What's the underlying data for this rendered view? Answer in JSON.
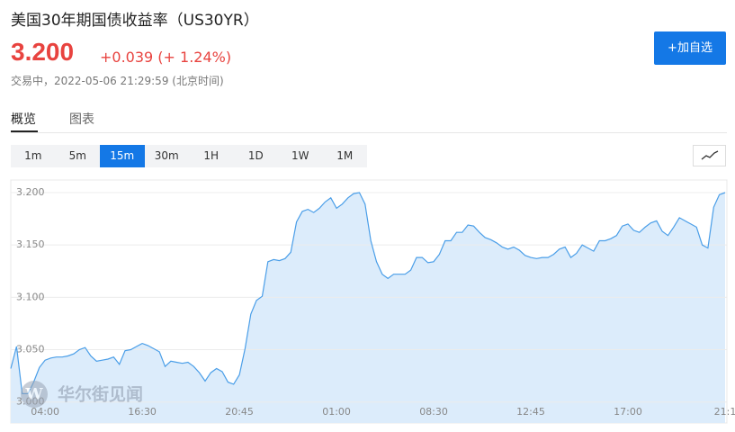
{
  "header": {
    "title": "美国30年期国债收益率（US30YR）",
    "price": "3.200",
    "change": "+0.039 (+ 1.24%)",
    "status": "交易中，2022-05-06 21:29:59 (北京时间)",
    "add_button": "+加自选"
  },
  "tabs": [
    "概览",
    "图表"
  ],
  "intervals": [
    "1m",
    "5m",
    "15m",
    "30m",
    "1H",
    "1D",
    "1W",
    "1M"
  ],
  "watermark": "华尔街见闻",
  "chart_data": {
    "type": "area",
    "x": [
      null,
      null,
      null,
      null,
      null,
      null,
      "04:00",
      null,
      null,
      null,
      null,
      null,
      null,
      null,
      null,
      null,
      null,
      null,
      null,
      null,
      null,
      null,
      null,
      "16:30",
      null,
      null,
      null,
      null,
      null,
      null,
      null,
      null,
      null,
      null,
      null,
      null,
      null,
      null,
      null,
      null,
      "20:45",
      null,
      null,
      null,
      null,
      null,
      null,
      null,
      null,
      null,
      null,
      null,
      null,
      null,
      null,
      null,
      null,
      "01:00",
      null,
      null,
      null,
      null,
      null,
      null,
      null,
      null,
      null,
      null,
      null,
      null,
      null,
      null,
      null,
      null,
      "08:30",
      null,
      null,
      null,
      null,
      null,
      null,
      null,
      null,
      null,
      null,
      null,
      null,
      null,
      null,
      null,
      null,
      "12:45",
      null,
      null,
      null,
      null,
      null,
      null,
      null,
      null,
      null,
      null,
      null,
      null,
      null,
      null,
      null,
      null,
      "17:00",
      null,
      null,
      null,
      null,
      null,
      null,
      null,
      null,
      null,
      null,
      null,
      null,
      null,
      null,
      null,
      null,
      "21:1"
    ],
    "series": [
      {
        "color": "#4a9ee8",
        "fill": "#dcecfb",
        "values": [
          3.032,
          3.053,
          3.008,
          3.008,
          3.019,
          3.033,
          3.04,
          3.042,
          3.043,
          3.043,
          3.044,
          3.046,
          3.05,
          3.052,
          3.044,
          3.039,
          3.04,
          3.041,
          3.043,
          3.036,
          3.049,
          3.05,
          3.053,
          3.056,
          3.054,
          3.051,
          3.048,
          3.034,
          3.039,
          3.038,
          3.037,
          3.038,
          3.034,
          3.028,
          3.02,
          3.028,
          3.032,
          3.029,
          3.019,
          3.017,
          3.026,
          3.051,
          3.084,
          3.097,
          3.101,
          3.134,
          3.136,
          3.135,
          3.137,
          3.143,
          3.172,
          3.182,
          3.184,
          3.181,
          3.185,
          3.191,
          3.195,
          3.185,
          3.189,
          3.195,
          3.199,
          3.2,
          3.189,
          3.154,
          3.134,
          3.122,
          3.118,
          3.122,
          3.122,
          3.122,
          3.126,
          3.138,
          3.138,
          3.133,
          3.134,
          3.141,
          3.154,
          3.154,
          3.162,
          3.162,
          3.169,
          3.168,
          3.162,
          3.157,
          3.155,
          3.152,
          3.148,
          3.146,
          3.148,
          3.145,
          3.14,
          3.138,
          3.137,
          3.138,
          3.138,
          3.141,
          3.146,
          3.148,
          3.138,
          3.142,
          3.15,
          3.147,
          3.144,
          3.154,
          3.154,
          3.156,
          3.159,
          3.168,
          3.17,
          3.164,
          3.162,
          3.167,
          3.171,
          3.173,
          3.163,
          3.159,
          3.167,
          3.176,
          3.173,
          3.17,
          3.167,
          3.15,
          3.147,
          3.186,
          3.198,
          3.2
        ]
      }
    ],
    "ylim": [
      2.98,
      3.212
    ],
    "yticks": [
      {
        "value": 3.0,
        "label": "3.000"
      },
      {
        "value": 3.05,
        "label": "3.050"
      },
      {
        "value": 3.1,
        "label": "3.100"
      },
      {
        "value": 3.15,
        "label": "3.150"
      },
      {
        "value": 3.2,
        "label": "3.200"
      }
    ],
    "grid": true
  }
}
